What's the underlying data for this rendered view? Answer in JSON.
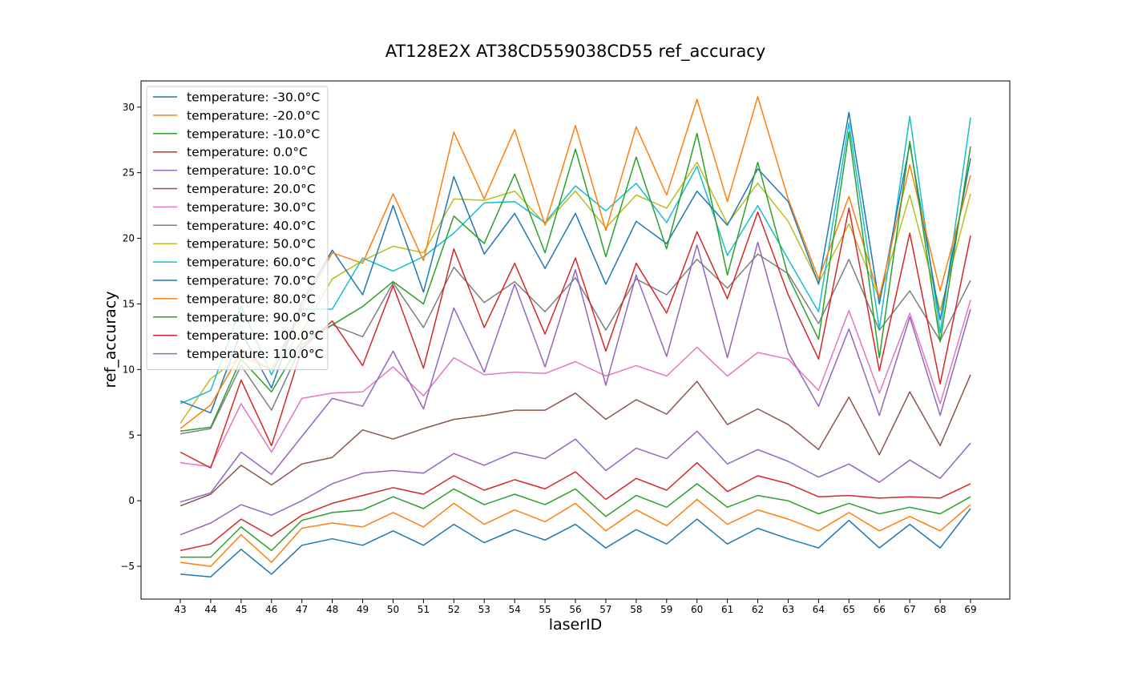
{
  "chart_data": {
    "type": "line",
    "title": "AT128E2X AT38CD559038CD55 ref_accuracy",
    "xlabel": "laserID",
    "ylabel": "ref_accuracy",
    "x": [
      43,
      44,
      45,
      46,
      47,
      48,
      49,
      50,
      51,
      52,
      53,
      54,
      55,
      56,
      57,
      58,
      59,
      60,
      61,
      62,
      63,
      64,
      65,
      66,
      67,
      68,
      69
    ],
    "ylim": [
      -7.5,
      32.0
    ],
    "yticks": [
      -5,
      0,
      5,
      10,
      15,
      20,
      25,
      30
    ],
    "ytick_labels": [
      "−5",
      "0",
      "5",
      "10",
      "15",
      "20",
      "25",
      "30"
    ],
    "grid": false,
    "legend_position": "top-left",
    "series": [
      {
        "name": "temperature: -30.0°C",
        "color": "#1f77b4",
        "values": [
          -5.6,
          -5.8,
          -3.7,
          -5.6,
          -3.4,
          -2.9,
          -3.4,
          -2.3,
          -3.4,
          -1.8,
          -3.2,
          -2.2,
          -3.0,
          -1.8,
          -3.6,
          -2.2,
          -3.3,
          -1.4,
          -3.3,
          -2.1,
          -2.9,
          -3.6,
          -1.5,
          -3.6,
          -1.8,
          -3.6,
          -0.6
        ]
      },
      {
        "name": "temperature: -20.0°C",
        "color": "#ff7f0e",
        "values": [
          -4.7,
          -5.0,
          -2.6,
          -4.7,
          -2.1,
          -1.7,
          -2.0,
          -0.9,
          -2.0,
          -0.2,
          -1.8,
          -0.7,
          -1.6,
          -0.2,
          -2.3,
          -0.7,
          -1.9,
          0.1,
          -1.8,
          -0.7,
          -1.4,
          -2.3,
          -0.9,
          -2.3,
          -1.2,
          -2.3,
          -0.3
        ]
      },
      {
        "name": "temperature: -10.0°C",
        "color": "#2ca02c",
        "values": [
          -4.3,
          -4.3,
          -2.0,
          -3.8,
          -1.5,
          -0.9,
          -0.7,
          0.3,
          -0.6,
          0.9,
          -0.3,
          0.5,
          -0.3,
          0.9,
          -1.2,
          0.4,
          -0.5,
          1.3,
          -0.5,
          0.4,
          0.0,
          -1.0,
          -0.2,
          -1.0,
          -0.5,
          -1.0,
          0.3
        ]
      },
      {
        "name": "temperature: 0.0°C",
        "color": "#d62728",
        "values": [
          -3.8,
          -3.3,
          -1.4,
          -2.7,
          -1.1,
          -0.2,
          0.4,
          1.0,
          0.5,
          1.9,
          0.8,
          1.6,
          0.9,
          2.2,
          0.1,
          1.7,
          0.8,
          2.9,
          0.7,
          1.9,
          1.3,
          0.3,
          0.4,
          0.2,
          0.3,
          0.2,
          1.3
        ]
      },
      {
        "name": "temperature: 10.0°C",
        "color": "#9467bd",
        "values": [
          -2.6,
          -1.7,
          -0.3,
          -1.1,
          0.0,
          1.3,
          2.1,
          2.3,
          2.1,
          3.6,
          2.7,
          3.7,
          3.2,
          4.7,
          2.3,
          4.0,
          3.2,
          5.3,
          2.8,
          3.9,
          3.0,
          1.8,
          2.8,
          1.4,
          3.1,
          1.7,
          4.4
        ]
      },
      {
        "name": "temperature: 20.0°C",
        "color": "#8c564b",
        "values": [
          -0.4,
          0.5,
          2.7,
          1.2,
          2.8,
          3.3,
          5.4,
          4.7,
          5.5,
          6.2,
          6.5,
          6.9,
          6.9,
          8.2,
          6.2,
          7.7,
          6.6,
          9.1,
          5.8,
          7.0,
          5.8,
          3.9,
          7.9,
          3.5,
          8.3,
          4.2,
          9.6
        ]
      },
      {
        "name": "temperature: 30.0°C",
        "color": "#e377c2",
        "values": [
          2.9,
          2.6,
          7.4,
          3.7,
          7.8,
          8.2,
          8.3,
          10.2,
          8.0,
          10.9,
          9.6,
          9.8,
          9.7,
          10.6,
          9.5,
          10.3,
          9.5,
          11.7,
          9.5,
          11.3,
          10.8,
          8.4,
          14.5,
          8.2,
          14.3,
          7.4,
          15.3
        ]
      },
      {
        "name": "temperature: 40.0°C",
        "color": "#7f7f7f",
        "values": [
          5.1,
          5.5,
          10.3,
          6.9,
          11.9,
          13.4,
          12.5,
          16.6,
          13.2,
          17.8,
          15.1,
          16.7,
          14.4,
          17.0,
          13.0,
          16.9,
          15.7,
          18.4,
          16.2,
          18.8,
          17.3,
          13.5,
          18.4,
          13.0,
          16.0,
          12.2,
          16.8
        ]
      },
      {
        "name": "temperature: 50.0°C",
        "color": "#bcbd22",
        "values": [
          5.9,
          9.3,
          11.0,
          10.0,
          12.9,
          16.9,
          18.3,
          19.4,
          18.9,
          23.0,
          22.9,
          23.6,
          21.1,
          23.6,
          20.8,
          23.3,
          22.3,
          25.8,
          21.1,
          24.2,
          21.3,
          16.6,
          21.1,
          15.4,
          23.3,
          14.5,
          23.4
        ]
      },
      {
        "name": "temperature: 60.0°C",
        "color": "#17becf",
        "values": [
          7.4,
          8.4,
          14.8,
          9.6,
          14.6,
          14.6,
          18.5,
          17.5,
          18.6,
          20.4,
          22.7,
          22.8,
          21.2,
          24.0,
          22.1,
          24.2,
          21.2,
          25.5,
          18.7,
          22.5,
          18.4,
          14.4,
          28.8,
          13.1,
          29.3,
          12.8,
          29.2
        ]
      },
      {
        "name": "temperature: 70.0°C",
        "color": "#1f77b4",
        "values": [
          7.6,
          6.7,
          12.9,
          8.6,
          15.1,
          19.1,
          15.7,
          22.5,
          15.9,
          24.7,
          18.8,
          21.9,
          17.7,
          21.9,
          16.5,
          21.3,
          19.6,
          23.6,
          21.0,
          25.3,
          22.8,
          16.5,
          29.6,
          15.0,
          27.2,
          13.8,
          26.1
        ]
      },
      {
        "name": "temperature: 80.0°C",
        "color": "#ff7f0e",
        "values": [
          5.5,
          7.3,
          11.3,
          10.0,
          14.7,
          18.9,
          18.1,
          23.4,
          18.3,
          28.1,
          23.0,
          28.3,
          21.0,
          28.6,
          20.6,
          28.5,
          23.3,
          30.6,
          22.8,
          30.8,
          23.0,
          16.9,
          23.2,
          15.5,
          25.6,
          16.0,
          24.8
        ]
      },
      {
        "name": "temperature: 90.0°C",
        "color": "#2ca02c",
        "values": [
          5.3,
          5.6,
          10.8,
          8.3,
          12.2,
          13.4,
          14.8,
          16.7,
          15.0,
          21.7,
          19.6,
          24.9,
          18.9,
          26.8,
          18.6,
          26.2,
          19.2,
          28.0,
          17.2,
          25.8,
          17.1,
          12.3,
          28.1,
          10.9,
          27.4,
          12.1,
          27.0
        ]
      },
      {
        "name": "temperature: 100.0°C",
        "color": "#d62728",
        "values": [
          3.7,
          2.5,
          9.2,
          4.2,
          11.6,
          13.7,
          10.3,
          16.4,
          10.1,
          19.2,
          13.2,
          18.1,
          12.7,
          18.5,
          11.4,
          18.1,
          14.3,
          20.5,
          15.4,
          22.0,
          15.7,
          10.8,
          22.3,
          9.9,
          20.4,
          8.9,
          20.2
        ]
      },
      {
        "name": "temperature: 110.0°C",
        "color": "#9467bd",
        "values": [
          -0.1,
          0.6,
          3.7,
          2.0,
          4.9,
          7.8,
          7.2,
          11.4,
          7.0,
          14.7,
          9.8,
          16.5,
          10.2,
          17.6,
          8.8,
          17.2,
          11.0,
          19.5,
          10.9,
          19.7,
          11.3,
          7.2,
          13.1,
          6.5,
          14.0,
          6.5,
          14.6
        ]
      }
    ]
  }
}
